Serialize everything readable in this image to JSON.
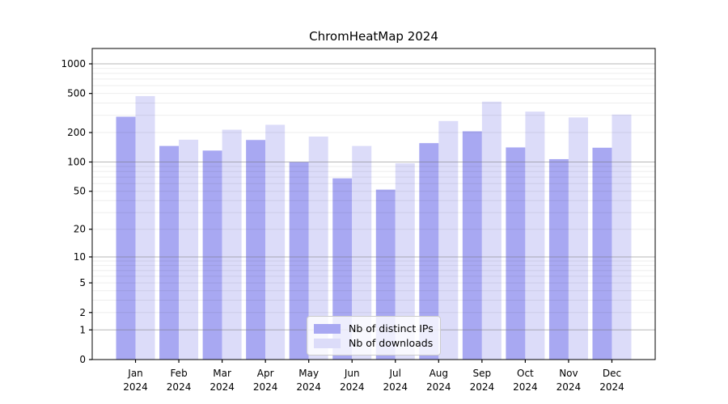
{
  "chart_data": {
    "type": "bar",
    "title": "ChromHeatMap 2024",
    "categories": [
      "Jan",
      "Feb",
      "Mar",
      "Apr",
      "May",
      "Jun",
      "Jul",
      "Aug",
      "Sep",
      "Oct",
      "Nov",
      "Dec"
    ],
    "category_year": "2024",
    "series": [
      {
        "name": "Nb of distinct IPs",
        "color": "#a8a8f2",
        "values": [
          290,
          146,
          131,
          168,
          100,
          68,
          52,
          156,
          206,
          141,
          107,
          140
        ]
      },
      {
        "name": "Nb of downloads",
        "color": "#dcdcf9",
        "values": [
          470,
          169,
          214,
          240,
          182,
          146,
          97,
          262,
          413,
          327,
          285,
          305
        ]
      }
    ],
    "yscale": "log1p",
    "ylim": [
      0,
      1000
    ],
    "yticks": [
      0,
      1,
      2,
      5,
      10,
      20,
      50,
      100,
      200,
      500,
      1000
    ],
    "grid": {
      "on": true,
      "major": [
        1,
        10,
        100,
        1000
      ],
      "minor_bases": [
        1,
        10,
        100
      ]
    },
    "legend": {
      "position": "lower-center"
    },
    "colors": {
      "spine": "#000000",
      "tick_text": "#000000",
      "major_grid": "#b0b0b0",
      "minor_grid": "#ebebeb"
    }
  }
}
